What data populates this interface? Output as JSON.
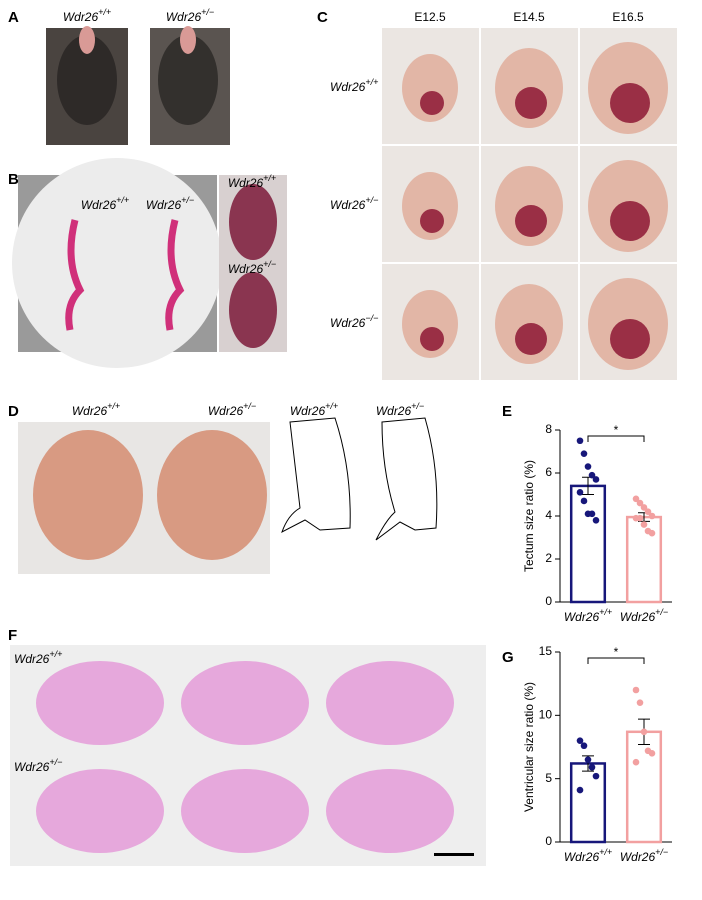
{
  "panel_a": {
    "letter": "A",
    "labels": [
      {
        "gene": "Wdr26",
        "genotype": "+/+"
      },
      {
        "gene": "Wdr26",
        "genotype": "+/−"
      }
    ]
  },
  "panel_b": {
    "letter": "B",
    "labels": [
      {
        "gene": "Wdr26",
        "genotype": "+/+"
      },
      {
        "gene": "Wdr26",
        "genotype": "+/−"
      },
      {
        "gene": "Wdr26",
        "genotype": "+/+"
      },
      {
        "gene": "Wdr26",
        "genotype": "+/−"
      }
    ]
  },
  "panel_c": {
    "letter": "C",
    "stages": [
      "E12.5",
      "E14.5",
      "E16.5"
    ],
    "rows": [
      {
        "gene": "Wdr26",
        "genotype": "+/+"
      },
      {
        "gene": "Wdr26",
        "genotype": "+/−"
      },
      {
        "gene": "Wdr26",
        "genotype": "−/−"
      }
    ]
  },
  "panel_d": {
    "letter": "D",
    "labels": [
      {
        "gene": "Wdr26",
        "genotype": "+/+"
      },
      {
        "gene": "Wdr26",
        "genotype": "+/−"
      },
      {
        "gene": "Wdr26",
        "genotype": "+/+"
      },
      {
        "gene": "Wdr26",
        "genotype": "+/−"
      }
    ]
  },
  "panel_f": {
    "letter": "F",
    "rows": [
      {
        "gene": "Wdr26",
        "genotype": "+/+"
      },
      {
        "gene": "Wdr26",
        "genotype": "+/−"
      }
    ]
  },
  "chart_data": [
    {
      "type": "bar",
      "panel": "E",
      "y_label": "Tectum size ratio (%)",
      "categories": [
        {
          "gene": "Wdr26",
          "genotype": "+/+"
        },
        {
          "gene": "Wdr26",
          "genotype": "+/−"
        }
      ],
      "values": [
        5.4,
        3.95
      ],
      "errors": [
        0.4,
        0.2
      ],
      "points": [
        [
          7.5,
          6.9,
          6.3,
          5.9,
          5.7,
          5.1,
          4.7,
          4.1,
          4.1,
          3.8
        ],
        [
          4.8,
          4.6,
          4.4,
          4.2,
          4.0,
          3.9,
          3.9,
          3.6,
          3.3,
          3.2
        ]
      ],
      "colors": [
        "#17177a",
        "#f2a0a0"
      ],
      "significance": "*",
      "ylim": [
        0,
        8
      ],
      "yticks": [
        0,
        2,
        4,
        6,
        8
      ]
    },
    {
      "type": "bar",
      "panel": "G",
      "y_label": "Ventricular size ratio (%)",
      "categories": [
        {
          "gene": "Wdr26",
          "genotype": "+/+"
        },
        {
          "gene": "Wdr26",
          "genotype": "+/−"
        }
      ],
      "values": [
        6.2,
        8.7
      ],
      "errors": [
        0.6,
        1.0
      ],
      "points": [
        [
          8.0,
          7.6,
          6.5,
          5.9,
          5.2,
          4.1
        ],
        [
          12.0,
          11.0,
          8.7,
          7.2,
          7.0,
          6.3
        ]
      ],
      "colors": [
        "#17177a",
        "#f2a0a0"
      ],
      "significance": "*",
      "ylim": [
        0,
        15
      ],
      "yticks": [
        0,
        5,
        10,
        15
      ]
    }
  ]
}
